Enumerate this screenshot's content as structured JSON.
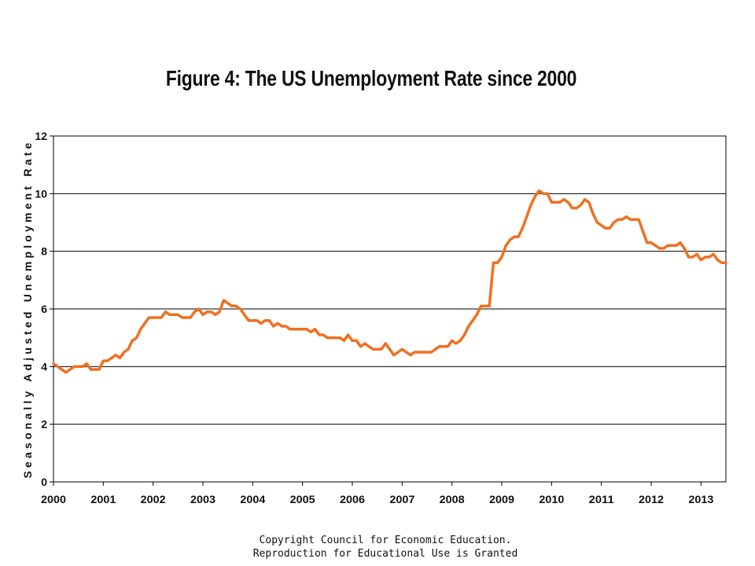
{
  "title": "Figure 4: The US Unemployment Rate since 2000",
  "footer": {
    "line1": "Copyright Council for Economic Education.",
    "line2": "Reproduction for Educational Use is Granted"
  },
  "chart_data": {
    "type": "line",
    "title": "Figure 4: The US Unemployment Rate since 2000",
    "xlabel": "",
    "ylabel": "Seasonally Adjusted Unemployment Rate",
    "xlim": [
      2000,
      2013.5
    ],
    "ylim": [
      0,
      12
    ],
    "x_ticks": [
      "2000",
      "2001",
      "2002",
      "2003",
      "2004",
      "2005",
      "2006",
      "2007",
      "2008",
      "2009",
      "2010",
      "2011",
      "2012",
      "2013"
    ],
    "y_ticks": [
      "0",
      "2",
      "4",
      "6",
      "8",
      "10",
      "12"
    ],
    "grid": true,
    "line_color": "#f07020",
    "series": [
      {
        "x": [
          2000.0,
          2000.083,
          2000.167,
          2000.25,
          2000.333,
          2000.417,
          2000.5,
          2000.583,
          2000.667,
          2000.75,
          2000.833,
          2000.917,
          2001.0,
          2001.083,
          2001.167,
          2001.25,
          2001.333,
          2001.417,
          2001.5,
          2001.583,
          2001.667,
          2001.75,
          2001.833,
          2001.917,
          2002.0,
          2002.083,
          2002.167,
          2002.25,
          2002.333,
          2002.417,
          2002.5,
          2002.583,
          2002.667,
          2002.75,
          2002.833,
          2002.917,
          2003.0,
          2003.083,
          2003.167,
          2003.25,
          2003.333,
          2003.417,
          2003.5,
          2003.583,
          2003.667,
          2003.75,
          2003.833,
          2003.917,
          2004.0,
          2004.083,
          2004.167,
          2004.25,
          2004.333,
          2004.417,
          2004.5,
          2004.583,
          2004.667,
          2004.75,
          2004.833,
          2004.917,
          2005.0,
          2005.083,
          2005.167,
          2005.25,
          2005.333,
          2005.417,
          2005.5,
          2005.583,
          2005.667,
          2005.75,
          2005.833,
          2005.917,
          2006.0,
          2006.083,
          2006.167,
          2006.25,
          2006.333,
          2006.417,
          2006.5,
          2006.583,
          2006.667,
          2006.75,
          2006.833,
          2006.917,
          2007.0,
          2007.083,
          2007.167,
          2007.25,
          2007.333,
          2007.417,
          2007.5,
          2007.583,
          2007.667,
          2007.75,
          2007.833,
          2007.917,
          2008.0,
          2008.083,
          2008.167,
          2008.25,
          2008.333,
          2008.417,
          2008.5,
          2008.583,
          2008.667,
          2008.75,
          2008.833,
          2008.917,
          2009.0,
          2009.083,
          2009.167,
          2009.25,
          2009.333,
          2009.417,
          2009.5,
          2009.583,
          2009.667,
          2009.75,
          2009.833,
          2009.917,
          2010.0,
          2010.083,
          2010.167,
          2010.25,
          2010.333,
          2010.417,
          2010.5,
          2010.583,
          2010.667,
          2010.75,
          2010.833,
          2010.917,
          2011.0,
          2011.083,
          2011.167,
          2011.25,
          2011.333,
          2011.417,
          2011.5,
          2011.583,
          2011.667,
          2011.75,
          2011.833,
          2011.917,
          2012.0,
          2012.083,
          2012.167,
          2012.25,
          2012.333,
          2012.417,
          2012.5,
          2012.583,
          2012.667,
          2012.75,
          2012.833,
          2012.917,
          2013.0,
          2013.083,
          2013.167,
          2013.25,
          2013.333,
          2013.417,
          2013.5
        ],
        "values": [
          4.1,
          4.0,
          3.9,
          3.8,
          3.9,
          4.0,
          4.0,
          4.0,
          4.1,
          3.9,
          3.9,
          3.9,
          4.2,
          4.2,
          4.3,
          4.4,
          4.3,
          4.5,
          4.6,
          4.9,
          5.0,
          5.3,
          5.5,
          5.7,
          5.7,
          5.7,
          5.7,
          5.9,
          5.8,
          5.8,
          5.8,
          5.7,
          5.7,
          5.7,
          5.9,
          6.0,
          5.8,
          5.9,
          5.9,
          5.8,
          5.9,
          6.3,
          6.2,
          6.1,
          6.1,
          6.0,
          5.8,
          5.6,
          5.6,
          5.6,
          5.5,
          5.6,
          5.6,
          5.4,
          5.5,
          5.4,
          5.4,
          5.3,
          5.3,
          5.3,
          5.3,
          5.3,
          5.2,
          5.3,
          5.1,
          5.1,
          5.0,
          5.0,
          5.0,
          5.0,
          4.9,
          5.1,
          4.9,
          4.9,
          4.7,
          4.8,
          4.7,
          4.6,
          4.6,
          4.6,
          4.8,
          4.6,
          4.4,
          4.5,
          4.6,
          4.5,
          4.4,
          4.5,
          4.5,
          4.5,
          4.5,
          4.5,
          4.6,
          4.7,
          4.7,
          4.7,
          4.9,
          4.8,
          4.9,
          5.1,
          5.4,
          5.6,
          5.8,
          6.1,
          6.1,
          6.1,
          7.6,
          7.6,
          7.8,
          8.2,
          8.4,
          8.5,
          8.5,
          8.8,
          9.2,
          9.6,
          9.9,
          10.1,
          10.0,
          10.0,
          9.7,
          9.7,
          9.7,
          9.8,
          9.7,
          9.5,
          9.5,
          9.6,
          9.8,
          9.7,
          9.3,
          9.0,
          8.9,
          8.8,
          8.8,
          9.0,
          9.1,
          9.1,
          9.2,
          9.1,
          9.1,
          9.1,
          8.7,
          8.3,
          8.3,
          8.2,
          8.1,
          8.1,
          8.2,
          8.2,
          8.2,
          8.3,
          8.1,
          7.8,
          7.8,
          7.9,
          7.7,
          7.8,
          7.8,
          7.9,
          7.7,
          7.6,
          7.6
        ]
      }
    ]
  }
}
